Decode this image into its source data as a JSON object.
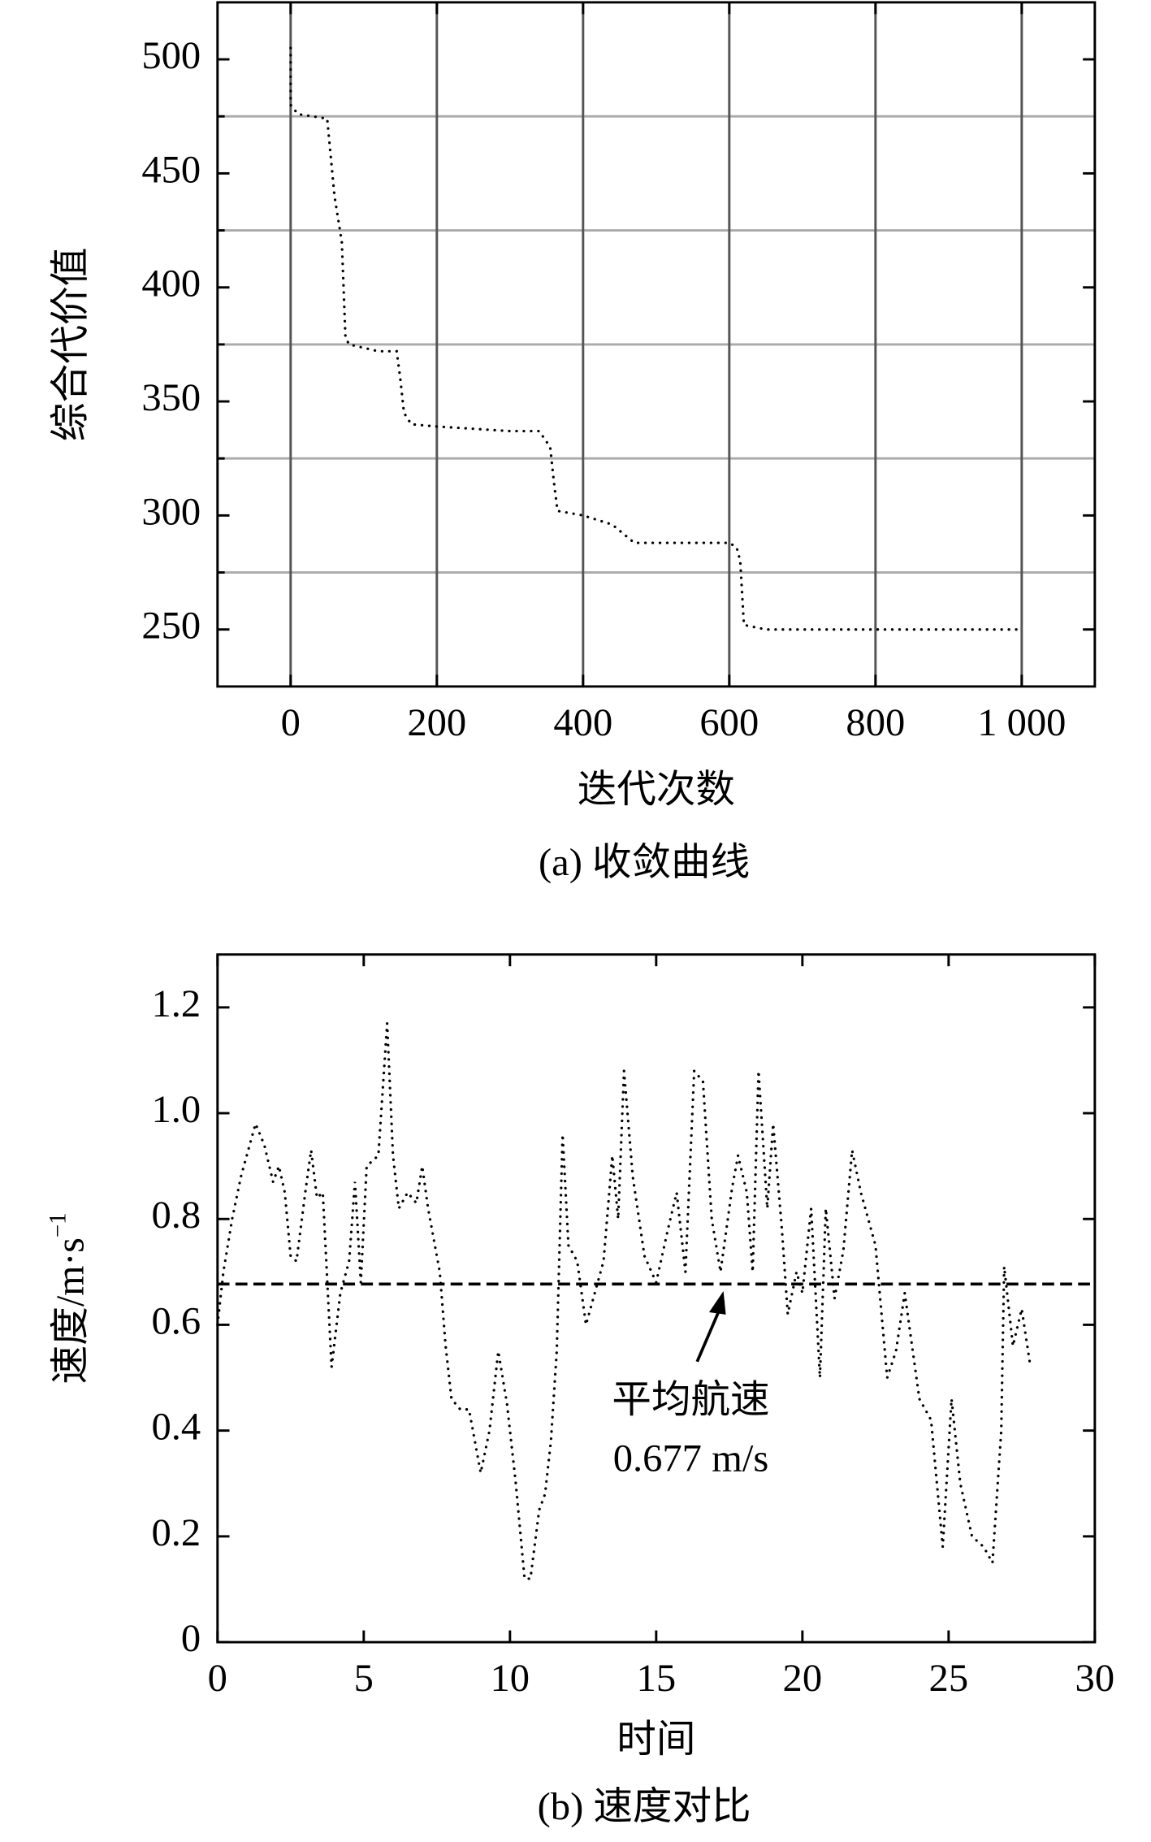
{
  "chart_data": [
    {
      "type": "line",
      "caption": "(a) 收敛曲线",
      "xlabel": "迭代次数",
      "ylabel": "综合代价值",
      "xlim": [
        -100,
        1100
      ],
      "ylim": [
        225,
        525
      ],
      "xticks": [
        0,
        200,
        400,
        600,
        800,
        {
          "value": 1000,
          "label": "1 000"
        }
      ],
      "yticks": [
        250,
        300,
        350,
        400,
        450,
        500
      ],
      "y_minor_ticks": [
        275,
        325,
        375,
        425,
        475
      ],
      "grid": true,
      "grid_color": "#aaaaaa",
      "vgrid_color": "#555555",
      "series": [
        {
          "color": "#000000",
          "x": [
            0,
            0,
            10,
            50,
            60,
            70,
            75,
            80,
            120,
            145,
            150,
            155,
            165,
            200,
            300,
            340,
            355,
            360,
            365,
            400,
            440,
            470,
            500,
            600,
            610,
            615,
            620,
            650,
            1000
          ],
          "values": [
            505,
            480,
            476,
            474,
            440,
            420,
            378,
            375,
            372,
            372,
            360,
            345,
            340,
            339,
            337,
            337,
            330,
            315,
            302,
            300,
            296,
            288,
            288,
            288,
            286,
            280,
            252,
            250,
            250
          ]
        }
      ]
    },
    {
      "type": "line",
      "caption": "(b) 速度对比",
      "xlabel": "时间",
      "ylabel": "速度/m·s",
      "ylabel_sup": "−1",
      "xlim": [
        0,
        30
      ],
      "ylim": [
        0,
        1.3
      ],
      "xticks": [
        0,
        5,
        10,
        15,
        20,
        25,
        30
      ],
      "yticks": [
        0,
        0.2,
        0.4,
        0.6,
        0.8,
        {
          "value": 1,
          "label": "1.0"
        },
        1.2
      ],
      "grid": false,
      "mean": 0.677,
      "annotation": [
        "平均航速",
        "0.677 m/s"
      ],
      "series": [
        {
          "color": "#000000",
          "x": [
            0,
            0.2,
            0.5,
            0.8,
            1.3,
            1.6,
            1.9,
            2.1,
            2.3,
            2.5,
            2.7,
            3.0,
            3.2,
            3.4,
            3.6,
            3.9,
            4.2,
            4.5,
            4.7,
            4.9,
            5.1,
            5.5,
            5.8,
            6.0,
            6.2,
            6.5,
            6.8,
            7.0,
            7.2,
            7.4,
            7.6,
            7.8,
            8.0,
            8.3,
            8.6,
            9.0,
            9.3,
            9.6,
            9.9,
            10.2,
            10.5,
            10.7,
            11.0,
            11.2,
            11.4,
            11.6,
            11.8,
            12.0,
            12.3,
            12.6,
            12.9,
            13.2,
            13.5,
            13.7,
            13.9,
            14.2,
            14.6,
            15.0,
            15.4,
            15.7,
            16.0,
            16.3,
            16.6,
            16.9,
            17.2,
            17.6,
            17.8,
            18.1,
            18.3,
            18.5,
            18.8,
            19.0,
            19.3,
            19.5,
            19.8,
            20.0,
            20.3,
            20.6,
            20.8,
            21.1,
            21.4,
            21.7,
            22.0,
            22.5,
            22.9,
            23.2,
            23.5,
            24.0,
            24.4,
            24.8,
            25.1,
            25.4,
            25.8,
            26.2,
            26.5,
            26.8,
            26.9,
            27.2,
            27.5,
            27.8
          ],
          "values": [
            0.6,
            0.7,
            0.8,
            0.88,
            0.98,
            0.94,
            0.87,
            0.9,
            0.85,
            0.73,
            0.72,
            0.85,
            0.93,
            0.84,
            0.85,
            0.52,
            0.66,
            0.72,
            0.87,
            0.68,
            0.9,
            0.92,
            1.17,
            0.92,
            0.82,
            0.85,
            0.83,
            0.9,
            0.82,
            0.76,
            0.7,
            0.56,
            0.46,
            0.44,
            0.44,
            0.32,
            0.4,
            0.55,
            0.45,
            0.3,
            0.12,
            0.12,
            0.25,
            0.28,
            0.38,
            0.55,
            0.96,
            0.75,
            0.72,
            0.6,
            0.66,
            0.72,
            0.92,
            0.8,
            1.08,
            0.88,
            0.73,
            0.68,
            0.78,
            0.85,
            0.7,
            1.08,
            1.06,
            0.8,
            0.7,
            0.86,
            0.92,
            0.85,
            0.7,
            1.08,
            0.82,
            0.98,
            0.78,
            0.62,
            0.7,
            0.66,
            0.82,
            0.5,
            0.82,
            0.65,
            0.74,
            0.93,
            0.85,
            0.75,
            0.5,
            0.55,
            0.66,
            0.46,
            0.42,
            0.18,
            0.46,
            0.3,
            0.2,
            0.18,
            0.15,
            0.4,
            0.71,
            0.56,
            0.63,
            0.52
          ]
        }
      ]
    }
  ]
}
